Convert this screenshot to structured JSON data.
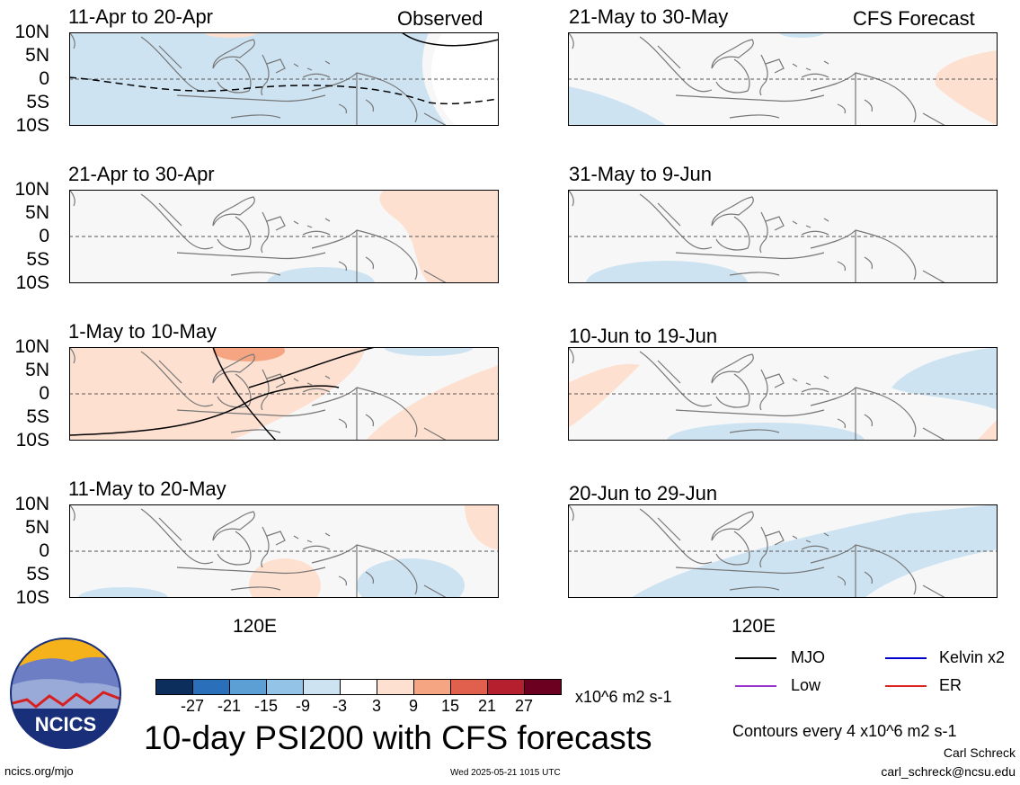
{
  "tags": {
    "observed": "Observed",
    "forecast": "CFS Forecast"
  },
  "lat_labels": [
    "10N",
    "5N",
    "0",
    "5S",
    "10S"
  ],
  "lon_label": "120E",
  "panels": [
    {
      "title": "11-Apr to 20-Apr",
      "kind": "observed"
    },
    {
      "title": "21-Apr to 30-Apr",
      "kind": "observed"
    },
    {
      "title": "1-May to 10-May",
      "kind": "observed"
    },
    {
      "title": "11-May to 20-May",
      "kind": "observed"
    },
    {
      "title": "21-May to 30-May",
      "kind": "forecast"
    },
    {
      "title": "31-May to 9-Jun",
      "kind": "forecast"
    },
    {
      "title": "10-Jun to 19-Jun",
      "kind": "forecast"
    },
    {
      "title": "20-Jun to 29-Jun",
      "kind": "forecast"
    }
  ],
  "colorbar": {
    "colors": [
      "#0b2e5c",
      "#2a6fba",
      "#5c9fd4",
      "#93c3e6",
      "#cde3f2",
      "#ffffff",
      "#fde0d0",
      "#f6a582",
      "#e0604d",
      "#b61f2e",
      "#6b0020"
    ],
    "ticks": [
      "-27",
      "-21",
      "-15",
      "-9",
      "-3",
      "3",
      "9",
      "15",
      "21",
      "27"
    ],
    "units": "x10^6 m2 s-1"
  },
  "legend": [
    {
      "label": "MJO",
      "color": "#000000"
    },
    {
      "label": "Kelvin x2",
      "color": "#0000cc"
    },
    {
      "label": "Low",
      "color": "#9933cc"
    },
    {
      "label": "ER",
      "color": "#dd2222"
    }
  ],
  "contour_note": "Contours every 4 x10^6 m2 s-1",
  "main_title": "10-day PSI200 with CFS forecasts",
  "logo_text": "NCICS",
  "footer": {
    "url": "ncics.org/mjo",
    "timestamp": "Wed 2025-05-21 1015 UTC",
    "author": "Carl Schreck",
    "email": "carl_schreck@ncsu.edu"
  }
}
